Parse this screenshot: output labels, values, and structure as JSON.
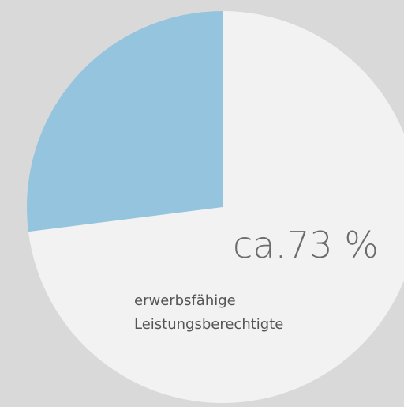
{
  "chart_data": {
    "type": "pie",
    "categories": [
      "erwerbsfähige Leistungsberechtigte",
      null
    ],
    "values": [
      73,
      27
    ],
    "value_labels": [
      "ca.73 %",
      null
    ],
    "colors": [
      "#f2f2f2",
      "#95c4df"
    ]
  }
}
